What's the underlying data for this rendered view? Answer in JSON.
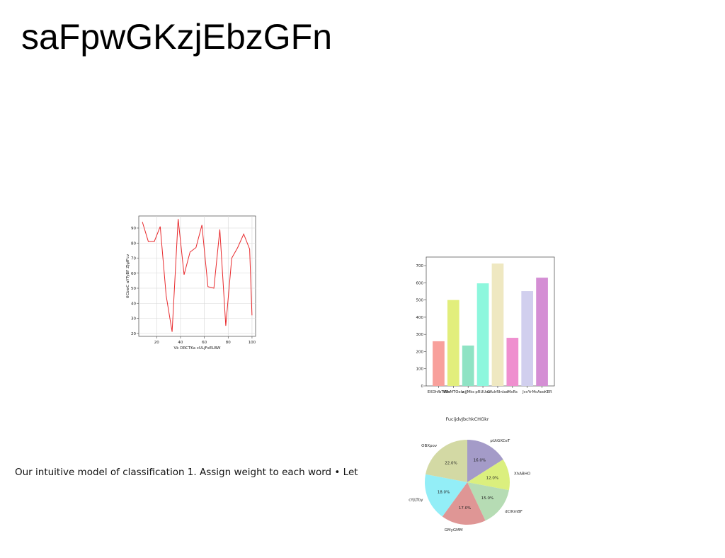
{
  "slide": {
    "title": "saFpwGKzjEbzGFn",
    "body_text": "Our intuitive model of classification 1. Assign weight to each word • Let"
  },
  "chart_data": [
    {
      "type": "line",
      "title": "",
      "xlabel": "Vk DRCTKa cULjFxELBW",
      "ylabel": "tlCbwC aYTyBF ZJgfFcv",
      "x": [
        8,
        13,
        18,
        23,
        28,
        33,
        38,
        43,
        48,
        53,
        58,
        63,
        68,
        73,
        78,
        83,
        88,
        93,
        98,
        100
      ],
      "series": [
        {
          "values": [
            94,
            81,
            81,
            91,
            45,
            21,
            96,
            59,
            74,
            77,
            92,
            51,
            50,
            89,
            25,
            70,
            77,
            86,
            76,
            32
          ],
          "color": "#e8282b"
        }
      ],
      "xticks": [
        20,
        40,
        60,
        80,
        100
      ],
      "yticks": [
        20,
        30,
        40,
        50,
        60,
        70,
        80,
        90
      ],
      "xlim": [
        5,
        103
      ],
      "ylim": [
        18,
        98
      ],
      "grid": true
    },
    {
      "type": "bar",
      "title": "",
      "categories": [
        "EXDhfbTWb",
        "VRsMTOelx",
        "wjJMks",
        "pRUUoa",
        "CYulrRInlad",
        "MxRs",
        "JcvYr",
        "McAooKER"
      ],
      "values": [
        260,
        500,
        235,
        597,
        712,
        280,
        552,
        630
      ],
      "colors": [
        "#f8a09b",
        "#e2ee7c",
        "#8fe3c4",
        "#8df7dd",
        "#efe8c1",
        "#ef8fcf",
        "#d1cfee",
        "#d48ed4"
      ],
      "yticks": [
        0,
        100,
        200,
        300,
        400,
        500,
        600,
        700
      ],
      "ylim": [
        0,
        750
      ],
      "grid": false
    },
    {
      "type": "pie",
      "title": "FucijdvJbchkCHGkr",
      "slices": [
        {
          "label": "pUtGXCeT",
          "value": 16.0,
          "pct": "16.0%",
          "color": "#a49bc8"
        },
        {
          "label": "XhABHO",
          "value": 12.0,
          "pct": "12.0%",
          "color": "#dbef7e"
        },
        {
          "label": "dClKmBF",
          "value": 15.0,
          "pct": "15.0%",
          "color": "#b6dcb4"
        },
        {
          "label": "GMyGMM",
          "value": 17.0,
          "pct": "17.0%",
          "color": "#df9695"
        },
        {
          "label": "cYjLTby",
          "value": 18.0,
          "pct": "18.0%",
          "color": "#93eef7"
        },
        {
          "label": "OBXpov",
          "value": 22.0,
          "pct": "22.0%",
          "color": "#d3d9a4"
        }
      ]
    }
  ]
}
